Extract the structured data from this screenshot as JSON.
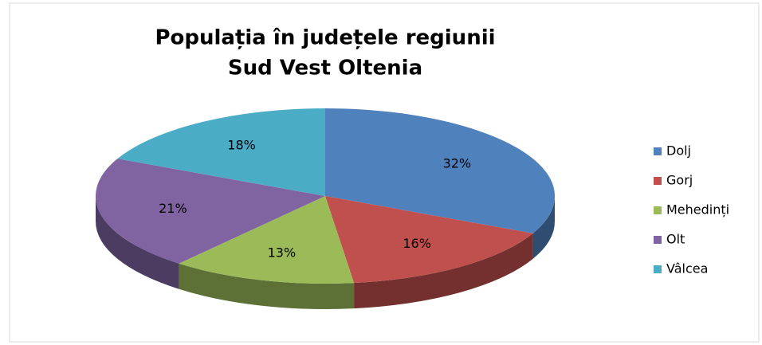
{
  "chart_data": {
    "type": "pie",
    "title": [
      "Populația în județele regiunii",
      "Sud Vest Oltenia"
    ],
    "categories": [
      "Dolj",
      "Gorj",
      "Mehedinți",
      "Olt",
      "Vâlcea"
    ],
    "values": [
      32,
      16,
      13,
      21,
      18
    ],
    "value_labels": [
      "32%",
      "16%",
      "13%",
      "21%",
      "18%"
    ],
    "colors": [
      "#4f81bd",
      "#c0504d",
      "#9bbb59",
      "#8064a2",
      "#4bacc6"
    ],
    "legend": "right"
  }
}
